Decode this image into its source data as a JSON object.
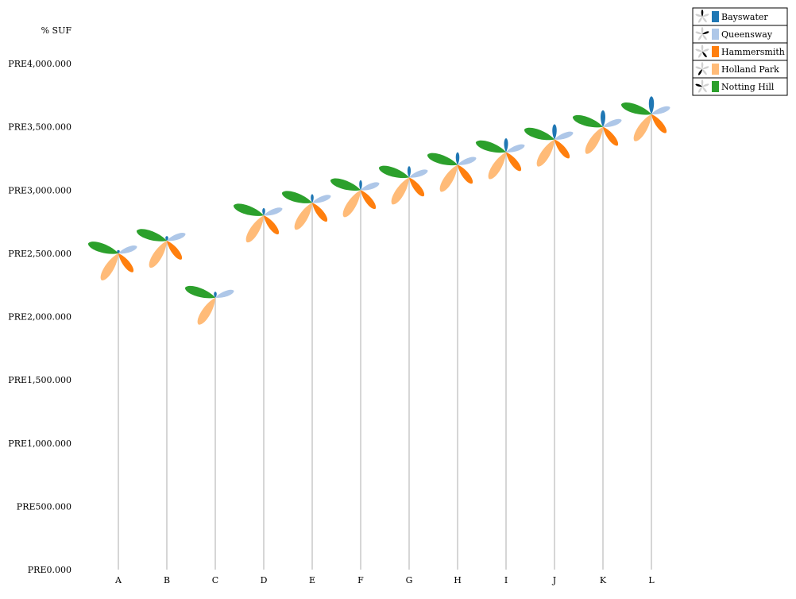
{
  "chart_data": {
    "type": "pinwheel",
    "unit_label": "% SUF",
    "categories": [
      "A",
      "B",
      "C",
      "D",
      "E",
      "F",
      "G",
      "H",
      "I",
      "J",
      "K",
      "L"
    ],
    "y_axis": {
      "ticks": [
        0,
        500,
        1000,
        1500,
        2000,
        2500,
        3000,
        3500,
        4000
      ],
      "tick_labels": [
        "PRE0.000",
        "PRE500.000",
        "PRE1,000.000",
        "PRE1,500.000",
        "PRE2,000.000",
        "PRE2,500.000",
        "PRE3,000.000",
        "PRE3,500.000",
        "PRE4,000.000"
      ],
      "ylim": [
        0,
        4250
      ]
    },
    "values": [
      2500,
      2600,
      2150,
      2800,
      2900,
      3000,
      3100,
      3200,
      3300,
      3400,
      3500,
      3600
    ],
    "series": [
      {
        "name": "Bayswater",
        "color": "#1f77b4",
        "values": [
          5,
          7,
          9,
          11,
          13,
          15,
          17,
          19,
          21,
          23,
          25,
          27
        ]
      },
      {
        "name": "Queensway",
        "color": "#aec7e8",
        "values": [
          30,
          30,
          30,
          30,
          30,
          30,
          30,
          30,
          30,
          30,
          30,
          30
        ]
      },
      {
        "name": "Hammersmith",
        "color": "#ff7f0e",
        "values": [
          36,
          36,
          0,
          36,
          36,
          36,
          36,
          36,
          36,
          36,
          36,
          36
        ]
      },
      {
        "name": "Holland Park",
        "color": "#ffbb78",
        "values": [
          48,
          48,
          48,
          48,
          48,
          48,
          48,
          48,
          48,
          48,
          48,
          48
        ]
      },
      {
        "name": "Notting Hill",
        "color": "#2ca02c",
        "values": [
          48,
          48,
          48,
          48,
          48,
          48,
          48,
          48,
          48,
          48,
          48,
          48
        ]
      }
    ],
    "legend_position": "top-right",
    "grid": false
  }
}
